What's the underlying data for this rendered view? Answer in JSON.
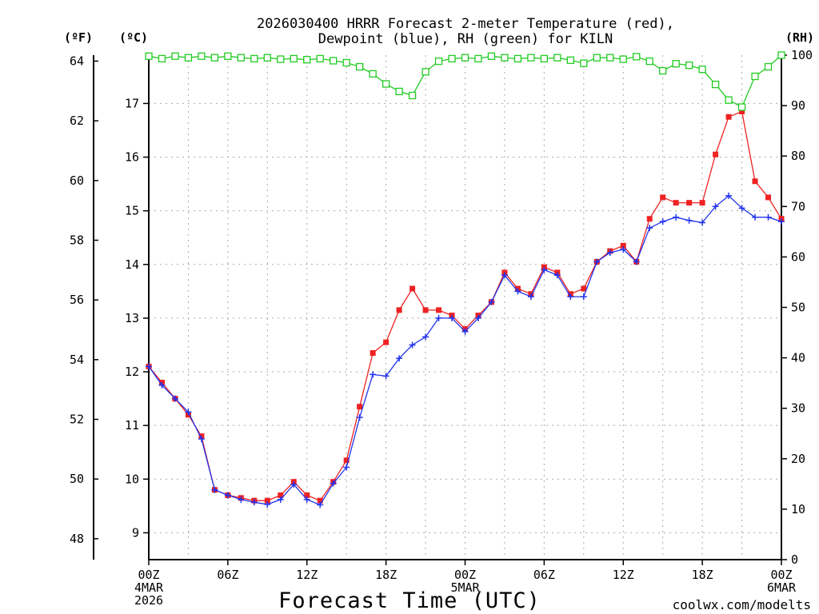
{
  "title_lines": [
    "2026030400 HRRR Forecast 2-meter Temperature (red),",
    "Dewpoint (blue), RH (green) for KILN"
  ],
  "unit_labels": {
    "fahrenheit": "(ºF)",
    "celsius": "(ºC)",
    "rh": "(RH)"
  },
  "xlabel": "Forecast Time (UTC)",
  "credit": "coolwx.com/modelts",
  "colors": {
    "temperature": "#ee2222",
    "dewpoint": "#2233ee",
    "rh": "#22cc22",
    "grid": "#aaaaaa",
    "axis": "#000000"
  },
  "chart_data": {
    "type": "line",
    "title": "2026030400 HRRR Forecast 2-meter Temperature (red), Dewpoint (blue), RH (green) for KILN",
    "xlabel": "Forecast Time (UTC)",
    "x_unit": "forecast hour from 2026-03-04 00Z",
    "xlim": [
      0,
      48
    ],
    "x_ticks": [
      {
        "hour": 0,
        "lines": [
          "00Z",
          "4MAR",
          "2026"
        ]
      },
      {
        "hour": 6,
        "lines": [
          "06Z"
        ]
      },
      {
        "hour": 12,
        "lines": [
          "12Z"
        ]
      },
      {
        "hour": 18,
        "lines": [
          "18Z"
        ]
      },
      {
        "hour": 24,
        "lines": [
          "00Z",
          "5MAR"
        ]
      },
      {
        "hour": 30,
        "lines": [
          "06Z"
        ]
      },
      {
        "hour": 36,
        "lines": [
          "12Z"
        ]
      },
      {
        "hour": 42,
        "lines": [
          "18Z"
        ]
      },
      {
        "hour": 48,
        "lines": [
          "00Z",
          "6MAR"
        ]
      }
    ],
    "celsius_axis": {
      "ylim": [
        8.5,
        17.9
      ],
      "ticks": [
        9,
        10,
        11,
        12,
        13,
        14,
        15,
        16,
        17
      ]
    },
    "fahrenheit_axis": {
      "ylim": [
        47.3,
        64.2
      ],
      "ticks": [
        48,
        50,
        52,
        54,
        56,
        58,
        60,
        62,
        64
      ]
    },
    "rh_axis": {
      "ylim": [
        0,
        100
      ],
      "ticks": [
        0,
        10,
        20,
        30,
        40,
        50,
        60,
        70,
        80,
        90,
        100
      ]
    },
    "grid": true,
    "series": [
      {
        "name": "Temperature",
        "axis": "celsius",
        "marker": "filled-square",
        "values": [
          12.1,
          11.8,
          11.5,
          11.2,
          10.8,
          9.8,
          9.7,
          9.65,
          9.6,
          9.6,
          9.7,
          9.95,
          9.7,
          9.6,
          9.95,
          10.35,
          11.35,
          12.35,
          12.55,
          13.15,
          13.55,
          13.15,
          13.15,
          13.05,
          12.8,
          13.05,
          13.3,
          13.85,
          13.55,
          13.45,
          13.95,
          13.85,
          13.45,
          13.55,
          14.05,
          14.25,
          14.35,
          14.05,
          14.85,
          15.25,
          15.15,
          15.15,
          15.15,
          16.05,
          16.75,
          16.85,
          15.55,
          15.25,
          14.85
        ]
      },
      {
        "name": "Dewpoint",
        "axis": "celsius",
        "marker": "plus",
        "values": [
          12.1,
          11.75,
          11.5,
          11.25,
          10.75,
          9.8,
          9.7,
          9.62,
          9.57,
          9.53,
          9.62,
          9.9,
          9.62,
          9.52,
          9.92,
          10.22,
          11.15,
          11.95,
          11.92,
          12.25,
          12.5,
          12.65,
          13.0,
          13.0,
          12.75,
          13.0,
          13.3,
          13.8,
          13.5,
          13.4,
          13.9,
          13.8,
          13.4,
          13.4,
          14.05,
          14.22,
          14.28,
          14.05,
          14.68,
          14.8,
          14.88,
          14.82,
          14.78,
          15.08,
          15.28,
          15.05,
          14.88,
          14.88,
          14.8
        ]
      },
      {
        "name": "RH",
        "axis": "rh",
        "marker": "open-square",
        "values": [
          99.8,
          99.3,
          99.8,
          99.5,
          99.8,
          99.5,
          99.8,
          99.5,
          99.3,
          99.5,
          99.2,
          99.3,
          99.1,
          99.3,
          98.9,
          98.5,
          97.7,
          96.3,
          94.3,
          92.8,
          92.0,
          96.7,
          98.8,
          99.3,
          99.5,
          99.3,
          99.8,
          99.5,
          99.3,
          99.5,
          99.3,
          99.5,
          99.0,
          98.4,
          99.5,
          99.5,
          99.2,
          99.7,
          98.8,
          96.9,
          98.3,
          98.0,
          97.2,
          94.2,
          91.1,
          89.7,
          95.8,
          97.7,
          100.0
        ]
      }
    ]
  }
}
